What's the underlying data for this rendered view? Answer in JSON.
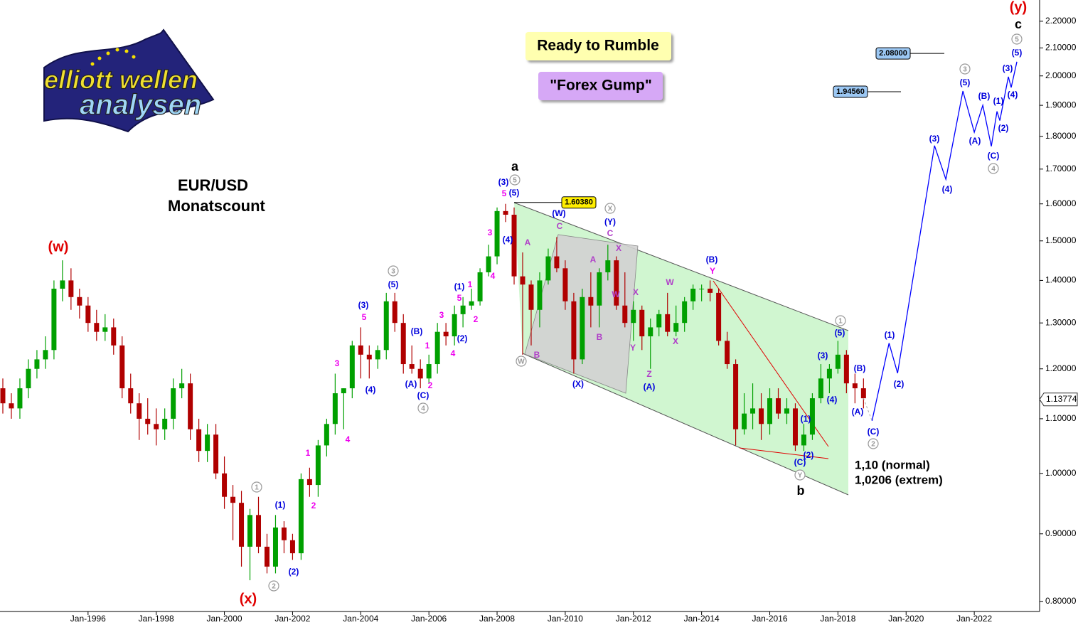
{
  "chart_data": {
    "type": "candlestick",
    "log_scale": true,
    "grid": false,
    "up_color": "#00a000",
    "down_color": "#b00000",
    "xlim": [
      "Jun-1993",
      "Dec-2023"
    ],
    "xticks": [
      "Jan-1996",
      "Jan-1998",
      "Jan-2000",
      "Jan-2002",
      "Jan-2004",
      "Jan-2006",
      "Jan-2008",
      "Jan-2010",
      "Jan-2012",
      "Jan-2014",
      "Jan-2016",
      "Jan-2018",
      "Jan-2020",
      "Jan-2022"
    ],
    "ylim": [
      0.786,
      2.283
    ],
    "yticks": [
      {
        "value": 0.8,
        "label": "0.80000"
      },
      {
        "value": 0.9,
        "label": "0.90000"
      },
      {
        "value": 1.0,
        "label": "1.00000"
      },
      {
        "value": 1.1,
        "label": "1.10000"
      },
      {
        "value": 1.2,
        "label": "1.20000"
      },
      {
        "value": 1.3,
        "label": "1.30000"
      },
      {
        "value": 1.4,
        "label": "1.40000"
      },
      {
        "value": 1.5,
        "label": "1.50000"
      },
      {
        "value": 1.6,
        "label": "1.60000"
      },
      {
        "value": 1.7,
        "label": "1.70000"
      },
      {
        "value": 1.8,
        "label": "1.80000"
      },
      {
        "value": 1.9,
        "label": "1.90000"
      },
      {
        "value": 2.0,
        "label": "2.00000"
      },
      {
        "value": 2.1,
        "label": "2.10000"
      },
      {
        "value": 2.2,
        "label": "2.20000"
      }
    ],
    "x": [
      "Jul-1993",
      "Oct-1993",
      "Jan-1994",
      "Apr-1994",
      "Jul-1994",
      "Oct-1994",
      "Jan-1995",
      "Apr-1995",
      "Jul-1995",
      "Oct-1995",
      "Jan-1996",
      "Apr-1996",
      "Jul-1996",
      "Oct-1996",
      "Jan-1997",
      "Apr-1997",
      "Jul-1997",
      "Oct-1997",
      "Jan-1998",
      "Apr-1998",
      "Jul-1998",
      "Oct-1998",
      "Jan-1999",
      "Apr-1999",
      "Jul-1999",
      "Oct-1999",
      "Jan-2000",
      "Apr-2000",
      "Jul-2000",
      "Oct-2000",
      "Jan-2001",
      "Apr-2001",
      "Jul-2001",
      "Oct-2001",
      "Jan-2002",
      "Apr-2002",
      "Jul-2002",
      "Oct-2002",
      "Jan-2003",
      "Apr-2003",
      "Jul-2003",
      "Oct-2003",
      "Jan-2004",
      "Apr-2004",
      "Jul-2004",
      "Oct-2004",
      "Jan-2005",
      "Apr-2005",
      "Jul-2005",
      "Oct-2005",
      "Jan-2006",
      "Apr-2006",
      "Jul-2006",
      "Oct-2006",
      "Jan-2007",
      "Apr-2007",
      "Jul-2007",
      "Oct-2007",
      "Jan-2008",
      "Apr-2008",
      "Jul-2008",
      "Oct-2008",
      "Jan-2009",
      "Apr-2009",
      "Jul-2009",
      "Oct-2009",
      "Jan-2010",
      "Apr-2010",
      "Jul-2010",
      "Oct-2010",
      "Jan-2011",
      "Apr-2011",
      "Jul-2011",
      "Oct-2011",
      "Jan-2012",
      "Apr-2012",
      "Jul-2012",
      "Oct-2012",
      "Jan-2013",
      "Apr-2013",
      "Jul-2013",
      "Oct-2013",
      "Jan-2014",
      "Apr-2014",
      "Jul-2014",
      "Oct-2014",
      "Jan-2015",
      "Apr-2015",
      "Jul-2015",
      "Oct-2015",
      "Jan-2016",
      "Apr-2016",
      "Jul-2016",
      "Oct-2016",
      "Jan-2017",
      "Apr-2017",
      "Jul-2017",
      "Oct-2017",
      "Jan-2018",
      "Apr-2018",
      "Jul-2018",
      "Oct-2018"
    ],
    "open": [
      1.16,
      1.13,
      1.12,
      1.16,
      1.2,
      1.22,
      1.24,
      1.38,
      1.4,
      1.36,
      1.34,
      1.3,
      1.28,
      1.29,
      1.25,
      1.16,
      1.13,
      1.1,
      1.09,
      1.08,
      1.1,
      1.16,
      1.17,
      1.08,
      1.04,
      1.07,
      1.0,
      0.96,
      0.95,
      0.88,
      0.93,
      0.88,
      0.85,
      0.91,
      0.89,
      0.87,
      0.99,
      0.98,
      1.05,
      1.09,
      1.15,
      1.16,
      1.25,
      1.23,
      1.22,
      1.24,
      1.35,
      1.3,
      1.21,
      1.2,
      1.18,
      1.21,
      1.28,
      1.27,
      1.32,
      1.34,
      1.35,
      1.42,
      1.46,
      1.58,
      1.57,
      1.41,
      1.39,
      1.33,
      1.4,
      1.46,
      1.43,
      1.35,
      1.22,
      1.36,
      1.34,
      1.42,
      1.45,
      1.34,
      1.3,
      1.33,
      1.27,
      1.29,
      1.32,
      1.28,
      1.3,
      1.35,
      1.38,
      1.38,
      1.37,
      1.26,
      1.21,
      1.08,
      1.11,
      1.12,
      1.09,
      1.14,
      1.11,
      1.12,
      1.05,
      1.07,
      1.14,
      1.18,
      1.2,
      1.23,
      1.17,
      1.16
    ],
    "high": [
      1.18,
      1.15,
      1.18,
      1.22,
      1.24,
      1.27,
      1.4,
      1.45,
      1.43,
      1.38,
      1.36,
      1.33,
      1.32,
      1.31,
      1.27,
      1.19,
      1.15,
      1.14,
      1.12,
      1.12,
      1.18,
      1.2,
      1.19,
      1.1,
      1.09,
      1.09,
      1.03,
      0.98,
      0.97,
      0.94,
      0.96,
      0.9,
      0.93,
      0.92,
      0.9,
      1.0,
      1.01,
      1.06,
      1.1,
      1.19,
      1.16,
      1.26,
      1.29,
      1.25,
      1.25,
      1.37,
      1.37,
      1.32,
      1.25,
      1.22,
      1.23,
      1.3,
      1.3,
      1.34,
      1.36,
      1.38,
      1.43,
      1.49,
      1.59,
      1.6,
      1.59,
      1.47,
      1.4,
      1.42,
      1.48,
      1.51,
      1.45,
      1.37,
      1.38,
      1.42,
      1.43,
      1.49,
      1.46,
      1.42,
      1.35,
      1.34,
      1.31,
      1.33,
      1.37,
      1.34,
      1.36,
      1.39,
      1.39,
      1.4,
      1.38,
      1.28,
      1.22,
      1.15,
      1.17,
      1.15,
      1.16,
      1.16,
      1.14,
      1.13,
      1.09,
      1.15,
      1.21,
      1.21,
      1.26,
      1.24,
      1.19,
      1.18
    ],
    "low": [
      1.11,
      1.1,
      1.1,
      1.14,
      1.18,
      1.2,
      1.22,
      1.35,
      1.33,
      1.31,
      1.28,
      1.26,
      1.26,
      1.23,
      1.14,
      1.11,
      1.06,
      1.07,
      1.05,
      1.06,
      1.08,
      1.14,
      1.06,
      1.02,
      1.02,
      0.99,
      0.94,
      0.89,
      0.85,
      0.83,
      0.87,
      0.84,
      0.84,
      0.87,
      0.86,
      0.86,
      0.96,
      0.96,
      1.03,
      1.07,
      1.08,
      1.14,
      1.18,
      1.18,
      1.2,
      1.22,
      1.28,
      1.19,
      1.19,
      1.16,
      1.17,
      1.19,
      1.25,
      1.25,
      1.29,
      1.33,
      1.34,
      1.41,
      1.44,
      1.55,
      1.39,
      1.23,
      1.25,
      1.29,
      1.39,
      1.42,
      1.33,
      1.19,
      1.21,
      1.29,
      1.29,
      1.4,
      1.33,
      1.29,
      1.26,
      1.24,
      1.2,
      1.27,
      1.27,
      1.27,
      1.28,
      1.33,
      1.35,
      1.35,
      1.25,
      1.2,
      1.05,
      1.07,
      1.08,
      1.06,
      1.07,
      1.1,
      1.09,
      1.04,
      1.04,
      1.06,
      1.13,
      1.15,
      1.19,
      1.15,
      1.13,
      1.12
    ],
    "close": [
      1.13,
      1.12,
      1.16,
      1.2,
      1.22,
      1.24,
      1.38,
      1.4,
      1.36,
      1.34,
      1.3,
      1.28,
      1.29,
      1.25,
      1.16,
      1.13,
      1.1,
      1.09,
      1.08,
      1.1,
      1.16,
      1.17,
      1.08,
      1.04,
      1.07,
      1.0,
      0.96,
      0.95,
      0.88,
      0.93,
      0.88,
      0.85,
      0.91,
      0.89,
      0.87,
      0.99,
      0.98,
      1.05,
      1.09,
      1.15,
      1.16,
      1.25,
      1.23,
      1.22,
      1.24,
      1.35,
      1.3,
      1.21,
      1.2,
      1.18,
      1.21,
      1.28,
      1.27,
      1.32,
      1.34,
      1.35,
      1.42,
      1.46,
      1.58,
      1.57,
      1.41,
      1.39,
      1.33,
      1.4,
      1.46,
      1.43,
      1.35,
      1.22,
      1.36,
      1.34,
      1.42,
      1.45,
      1.34,
      1.3,
      1.33,
      1.27,
      1.29,
      1.32,
      1.28,
      1.3,
      1.35,
      1.38,
      1.38,
      1.37,
      1.26,
      1.21,
      1.08,
      1.11,
      1.12,
      1.09,
      1.14,
      1.11,
      1.12,
      1.05,
      1.07,
      1.14,
      1.18,
      1.2,
      1.23,
      1.17,
      1.16,
      1.14
    ],
    "projection": {
      "color": "#0000ff",
      "x": [
        "Jan-2019",
        "Jul-2019",
        "Oct-2019",
        "Nov-2020",
        "Mar-2021",
        "Sep-2021",
        "Jan-2022",
        "Apr-2022",
        "Jul-2022",
        "Sep-2022",
        "Oct-2022",
        "Jan-2023",
        "Feb-2023",
        "Apr-2023"
      ],
      "values": [
        1.096,
        1.255,
        1.191,
        1.771,
        1.67,
        1.948,
        1.813,
        1.9,
        1.769,
        1.88,
        1.85,
        1.997,
        1.96,
        2.05
      ]
    },
    "levels": [
      {
        "value": 1.6038,
        "label": "1.60380",
        "color": "#ffee00"
      },
      {
        "value": 1.9456,
        "label": "1.94560",
        "color": "#9cc8f4"
      },
      {
        "value": 2.08,
        "label": "2.08000",
        "color": "#9cc8f4"
      }
    ],
    "last_price": {
      "value": 1.13774,
      "label": "1.13774"
    },
    "annotations": [
      "Ready to Rumble",
      "\"Forex Gump\"",
      "EUR/USD",
      "Monatscount",
      "1,10 (normal)",
      "1,0206 (extrem)"
    ],
    "logo": [
      "elliott wellen",
      "analysen"
    ],
    "wave_labels": [
      {
        "text": "(w)",
        "color": "#e00000"
      },
      {
        "text": "(x)",
        "color": "#e00000"
      },
      {
        "text": "(y)",
        "color": "#e00000"
      },
      {
        "text": "c",
        "color": "#000000"
      },
      {
        "text": "a",
        "color": "#000000"
      },
      {
        "text": "b",
        "color": "#000000"
      },
      {
        "text": "5",
        "color": "#999999",
        "circled": true
      },
      {
        "text": "(5)",
        "color": "#0000dd"
      },
      {
        "text": "(3)",
        "color": "#0000dd"
      },
      {
        "text": "(4)",
        "color": "#0000dd"
      },
      {
        "text": "(1)",
        "color": "#0000dd"
      },
      {
        "text": "(2)",
        "color": "#0000dd"
      },
      {
        "text": "(C)",
        "color": "#0000dd"
      },
      {
        "text": "4",
        "color": "#999999",
        "circled": true
      },
      {
        "text": "3",
        "color": "#999999",
        "circled": true
      },
      {
        "text": "(5)",
        "color": "#0000dd"
      },
      {
        "text": "(B)",
        "color": "#0000dd"
      },
      {
        "text": "(A)",
        "color": "#0000dd"
      },
      {
        "text": "(3)",
        "color": "#0000dd"
      },
      {
        "text": "(4)",
        "color": "#0000dd"
      },
      {
        "text": "(1)",
        "color": "#0000dd"
      },
      {
        "text": "(2)",
        "color": "#0000dd"
      },
      {
        "text": "(C)",
        "color": "#0000dd"
      },
      {
        "text": "2",
        "color": "#999999",
        "circled": true
      },
      {
        "text": "(B)",
        "color": "#0000dd"
      },
      {
        "text": "(A)",
        "color": "#0000dd"
      },
      {
        "text": "1",
        "color": "#999999",
        "circled": true
      },
      {
        "text": "(5)",
        "color": "#0000dd"
      },
      {
        "text": "(3)",
        "color": "#0000dd"
      },
      {
        "text": "(4)",
        "color": "#0000dd"
      },
      {
        "text": "(1)",
        "color": "#0000dd"
      },
      {
        "text": "(2)",
        "color": "#0000dd"
      },
      {
        "text": "(C)",
        "color": "#0000dd"
      },
      {
        "text": "Y",
        "color": "#999999",
        "circled": true
      },
      {
        "text": "(B)",
        "color": "#0000dd"
      },
      {
        "text": "Y",
        "color": "#ee00ee"
      },
      {
        "text": "W",
        "color": "#b040c8"
      },
      {
        "text": "X",
        "color": "#b040c8"
      },
      {
        "text": "Z",
        "color": "#b040c8"
      },
      {
        "text": "(A)",
        "color": "#0000dd"
      },
      {
        "text": "Y",
        "color": "#b040c8"
      },
      {
        "text": "X",
        "color": "#b040c8"
      },
      {
        "text": "W",
        "color": "#b040c8"
      },
      {
        "text": "X",
        "color": "#b040c8"
      },
      {
        "text": "C",
        "color": "#b040c8"
      },
      {
        "text": "(Y)",
        "color": "#0000dd"
      },
      {
        "text": "X",
        "color": "#999999",
        "circled": true
      },
      {
        "text": "A",
        "color": "#b040c8"
      },
      {
        "text": "B",
        "color": "#b040c8"
      },
      {
        "text": "(X)",
        "color": "#0000dd"
      },
      {
        "text": "(W)",
        "color": "#0000dd"
      },
      {
        "text": "C",
        "color": "#b040c8"
      },
      {
        "text": "A",
        "color": "#b040c8"
      },
      {
        "text": "B",
        "color": "#b040c8"
      },
      {
        "text": "W",
        "color": "#999999",
        "circled": true
      },
      {
        "text": "(3)",
        "color": "#0000dd"
      },
      {
        "text": "5",
        "color": "#999999",
        "circled": true
      },
      {
        "text": "5",
        "color": "#ee00ee"
      },
      {
        "text": "(5)",
        "color": "#0000dd"
      },
      {
        "text": "(4)",
        "color": "#0000dd"
      },
      {
        "text": "3",
        "color": "#ee00ee"
      },
      {
        "text": "4",
        "color": "#ee00ee"
      },
      {
        "text": "1",
        "color": "#ee00ee"
      },
      {
        "text": "(1)",
        "color": "#0000dd"
      },
      {
        "text": "5",
        "color": "#ee00ee"
      },
      {
        "text": "2",
        "color": "#ee00ee"
      },
      {
        "text": "3",
        "color": "#ee00ee"
      },
      {
        "text": "(2)",
        "color": "#0000dd"
      },
      {
        "text": "4",
        "color": "#ee00ee"
      },
      {
        "text": "(B)",
        "color": "#0000dd"
      },
      {
        "text": "1",
        "color": "#ee00ee"
      },
      {
        "text": "2",
        "color": "#ee00ee"
      },
      {
        "text": "(A)",
        "color": "#0000dd"
      },
      {
        "text": "(C)",
        "color": "#0000dd"
      },
      {
        "text": "4",
        "color": "#999999",
        "circled": true
      },
      {
        "text": "3",
        "color": "#999999",
        "circled": true
      },
      {
        "text": "(5)",
        "color": "#0000dd"
      },
      {
        "text": "(3)",
        "color": "#0000dd"
      },
      {
        "text": "5",
        "color": "#ee00ee"
      },
      {
        "text": "3",
        "color": "#ee00ee"
      },
      {
        "text": "(4)",
        "color": "#0000dd"
      },
      {
        "text": "4",
        "color": "#ee00ee"
      },
      {
        "text": "1",
        "color": "#ee00ee"
      },
      {
        "text": "2",
        "color": "#ee00ee"
      },
      {
        "text": "(1)",
        "color": "#0000dd"
      },
      {
        "text": "(2)",
        "color": "#0000dd"
      },
      {
        "text": "1",
        "color": "#999999",
        "circled": true
      },
      {
        "text": "2",
        "color": "#999999",
        "circled": true
      }
    ]
  }
}
